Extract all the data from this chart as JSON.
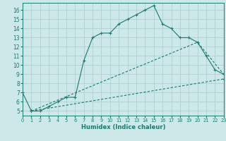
{
  "xlabel": "Humidex (Indice chaleur)",
  "bg_color": "#cce8e8",
  "grid_color": "#aacccc",
  "line_color": "#1a7a6e",
  "xlim": [
    0,
    23
  ],
  "ylim": [
    4.5,
    16.8
  ],
  "xticks": [
    0,
    1,
    2,
    3,
    4,
    5,
    6,
    7,
    8,
    9,
    10,
    11,
    12,
    13,
    14,
    15,
    16,
    17,
    18,
    19,
    20,
    21,
    22,
    23
  ],
  "yticks": [
    5,
    6,
    7,
    8,
    9,
    10,
    11,
    12,
    13,
    14,
    15,
    16
  ],
  "line1_x": [
    0,
    1,
    2,
    3,
    4,
    5,
    6,
    7,
    8,
    9,
    10,
    11,
    12,
    13,
    14,
    15,
    16,
    17,
    18,
    19,
    20,
    21,
    22,
    23
  ],
  "line1_y": [
    7.0,
    5.0,
    5.0,
    5.5,
    6.0,
    6.5,
    6.5,
    10.5,
    13.0,
    13.5,
    13.5,
    14.5,
    15.0,
    15.5,
    16.0,
    16.5,
    14.5,
    14.0,
    13.0,
    13.0,
    12.5,
    11.0,
    9.5,
    9.0
  ],
  "line2_x": [
    1,
    23
  ],
  "line2_y": [
    5.0,
    8.5
  ],
  "line3_x": [
    1,
    20,
    23
  ],
  "line3_y": [
    5.0,
    12.5,
    9.0
  ]
}
